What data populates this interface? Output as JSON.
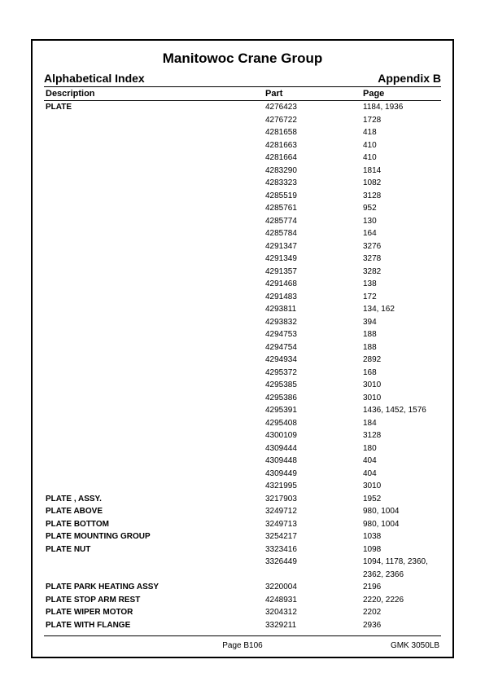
{
  "header": {
    "title": "Manitowoc Crane Group",
    "index_label": "Alphabetical Index",
    "appendix_label": "Appendix B"
  },
  "columns": {
    "description": "Description",
    "part": "Part",
    "page": "Page"
  },
  "rows": [
    {
      "desc": "PLATE",
      "part": "4276423",
      "page": "1184, 1936"
    },
    {
      "desc": "",
      "part": "4276722",
      "page": "1728"
    },
    {
      "desc": "",
      "part": "4281658",
      "page": "418"
    },
    {
      "desc": "",
      "part": "4281663",
      "page": "410"
    },
    {
      "desc": "",
      "part": "4281664",
      "page": "410"
    },
    {
      "desc": "",
      "part": "4283290",
      "page": "1814"
    },
    {
      "desc": "",
      "part": "4283323",
      "page": "1082"
    },
    {
      "desc": "",
      "part": "4285519",
      "page": "3128"
    },
    {
      "desc": "",
      "part": "4285761",
      "page": "952"
    },
    {
      "desc": "",
      "part": "4285774",
      "page": "130"
    },
    {
      "desc": "",
      "part": "4285784",
      "page": "164"
    },
    {
      "desc": "",
      "part": "4291347",
      "page": "3276"
    },
    {
      "desc": "",
      "part": "4291349",
      "page": "3278"
    },
    {
      "desc": "",
      "part": "4291357",
      "page": "3282"
    },
    {
      "desc": "",
      "part": "4291468",
      "page": "138"
    },
    {
      "desc": "",
      "part": "4291483",
      "page": "172"
    },
    {
      "desc": "",
      "part": "4293811",
      "page": "134, 162"
    },
    {
      "desc": "",
      "part": "4293832",
      "page": "394"
    },
    {
      "desc": "",
      "part": "4294753",
      "page": "188"
    },
    {
      "desc": "",
      "part": "4294754",
      "page": "188"
    },
    {
      "desc": "",
      "part": "4294934",
      "page": "2892"
    },
    {
      "desc": "",
      "part": "4295372",
      "page": "168"
    },
    {
      "desc": "",
      "part": "4295385",
      "page": "3010"
    },
    {
      "desc": "",
      "part": "4295386",
      "page": "3010"
    },
    {
      "desc": "",
      "part": "4295391",
      "page": "1436, 1452, 1576"
    },
    {
      "desc": "",
      "part": "4295408",
      "page": "184"
    },
    {
      "desc": "",
      "part": "4300109",
      "page": "3128"
    },
    {
      "desc": "",
      "part": "4309444",
      "page": "180"
    },
    {
      "desc": "",
      "part": "4309448",
      "page": "404"
    },
    {
      "desc": "",
      "part": "4309449",
      "page": "404"
    },
    {
      "desc": "",
      "part": "4321995",
      "page": "3010"
    },
    {
      "desc": "PLATE , ASSY.",
      "part": "3217903",
      "page": "1952"
    },
    {
      "desc": "PLATE ABOVE",
      "part": "3249712",
      "page": "980, 1004"
    },
    {
      "desc": "PLATE BOTTOM",
      "part": "3249713",
      "page": "980, 1004"
    },
    {
      "desc": "PLATE MOUNTING GROUP",
      "part": "3254217",
      "page": "1038"
    },
    {
      "desc": "PLATE NUT",
      "part": "3323416",
      "page": "1098"
    },
    {
      "desc": "",
      "part": "3326449",
      "page": "1094, 1178, 2360, 2362, 2366"
    },
    {
      "desc": "PLATE PARK HEATING ASSY",
      "part": "3220004",
      "page": "2196"
    },
    {
      "desc": "PLATE STOP ARM REST",
      "part": "4248931",
      "page": "2220, 2226"
    },
    {
      "desc": "PLATE WIPER MOTOR",
      "part": "3204312",
      "page": "2202"
    },
    {
      "desc": "PLATE WITH FLANGE",
      "part": "3329211",
      "page": "2936"
    }
  ],
  "footer": {
    "page_label": "Page B106",
    "model": "GMK 3050LB"
  }
}
